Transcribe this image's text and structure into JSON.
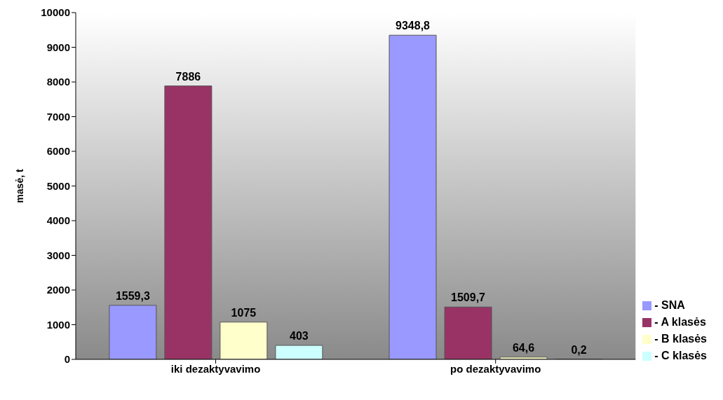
{
  "chart_data": {
    "type": "bar",
    "ylabel": "masė, t",
    "categories": [
      "iki dezaktyvavimo",
      "po dezaktyvavimo"
    ],
    "series": [
      {
        "name": "- SNA",
        "color": "#9999ff",
        "values": [
          1559.3,
          9348.8
        ],
        "value_labels": [
          "1559,3",
          "9348,8"
        ]
      },
      {
        "name": "- A klasės",
        "color": "#993366",
        "values": [
          7886,
          1509.7
        ],
        "value_labels": [
          "7886",
          "1509,7"
        ]
      },
      {
        "name": "- B klasės",
        "color": "#ffffcc",
        "values": [
          1075,
          64.6
        ],
        "value_labels": [
          "1075",
          "64,6"
        ]
      },
      {
        "name": "- C klasės",
        "color": "#ccffff",
        "values": [
          403,
          0.2
        ],
        "value_labels": [
          "403",
          "0,2"
        ]
      }
    ],
    "ylim": [
      0,
      10000
    ],
    "yticks": [
      0,
      1000,
      2000,
      3000,
      4000,
      5000,
      6000,
      7000,
      8000,
      9000,
      10000
    ],
    "grid": false,
    "legend": "bottom right"
  }
}
